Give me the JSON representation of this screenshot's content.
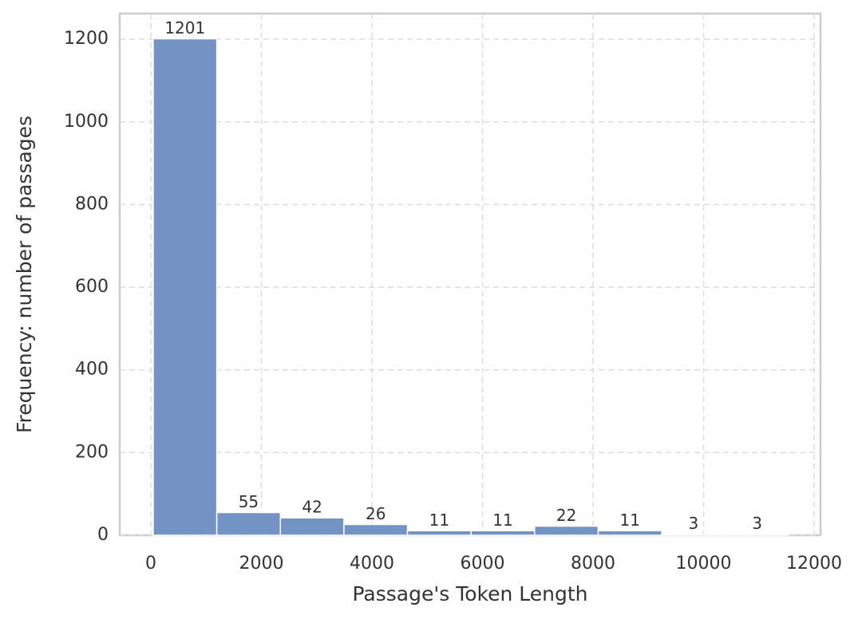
{
  "chart_data": {
    "type": "histogram",
    "xlabel": "Passage's Token Length",
    "ylabel": "Frequency: number of passages",
    "bins": [
      43,
      1193,
      2343,
      3493,
      4643,
      5793,
      6943,
      8093,
      9243,
      10393,
      11543
    ],
    "counts": [
      1201,
      55,
      42,
      26,
      11,
      11,
      22,
      11,
      3,
      3
    ],
    "color": "#7393c4",
    "xlim": [
      -563,
      12115
    ],
    "ylim": [
      0,
      1262
    ],
    "xticks": [
      0,
      2000,
      4000,
      6000,
      8000,
      10000,
      12000
    ],
    "yticks": [
      0,
      200,
      400,
      600,
      800,
      1000,
      1200
    ],
    "grid": true
  }
}
